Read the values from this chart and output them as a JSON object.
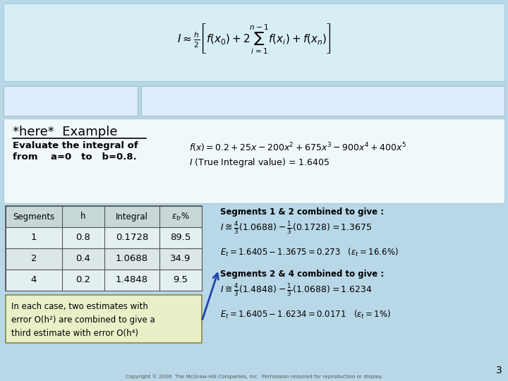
{
  "bg_color": "#b8d8e8",
  "title_text": "*here*  Example",
  "subtitle_line1": "Evaluate the integral of",
  "subtitle_line2": "from    a=0   to   b=0.8.",
  "func_text": "$f(x) = 0.2 +25x - 200x^2 + 675x^3 - 900x^4 + 400x^5$",
  "integral_text": "$I$ (True Integral value) = 1.6405",
  "table_headers": [
    "Segments",
    "h",
    "Integral",
    "$\\varepsilon_{tr}$%"
  ],
  "table_rows": [
    [
      "1",
      "0.8",
      "0.1728",
      "89.5"
    ],
    [
      "2",
      "0.4",
      "1.0688",
      "34.9"
    ],
    [
      "4",
      "0.2",
      "1.4848",
      "9.5"
    ]
  ],
  "note_text": "In each case, two estimates with\nerror O(h²) are combined to give a\nthird estimate with error O(h⁴)",
  "note_bg": "#e8f0c8",
  "rhs_line1": "Segments 1 & 2 combined to give :",
  "rhs_eq1": "$I \\cong \\frac{4}{3}(1.0688) - \\frac{1}{3}(0.1728) = 1.3675$",
  "rhs_eq2": "$E_t = 1.6405 - 1.3675 = 0.273 \\quad (\\varepsilon_t = 16.6\\%)$",
  "rhs_line2": "Segments 2 & 4 combined to give :",
  "rhs_eq3": "$I \\cong \\frac{4}{3}(1.4848) - \\frac{1}{3}(1.0688) = 1.6234$",
  "rhs_eq4": "$E_t = 1.6405 - 1.6234 = 0.0171 \\quad (\\varepsilon_t = 1\\%)$",
  "page_num": "3",
  "header_bg": "#d8eef5",
  "white_box": "#f0f8fc",
  "table_bg": "#dce8e8",
  "table_header_bg": "#c8d8d8",
  "copyright": "Copyright © 2006  The McGraw-Hill Companies, Inc.  Permission required for reproduction or display."
}
